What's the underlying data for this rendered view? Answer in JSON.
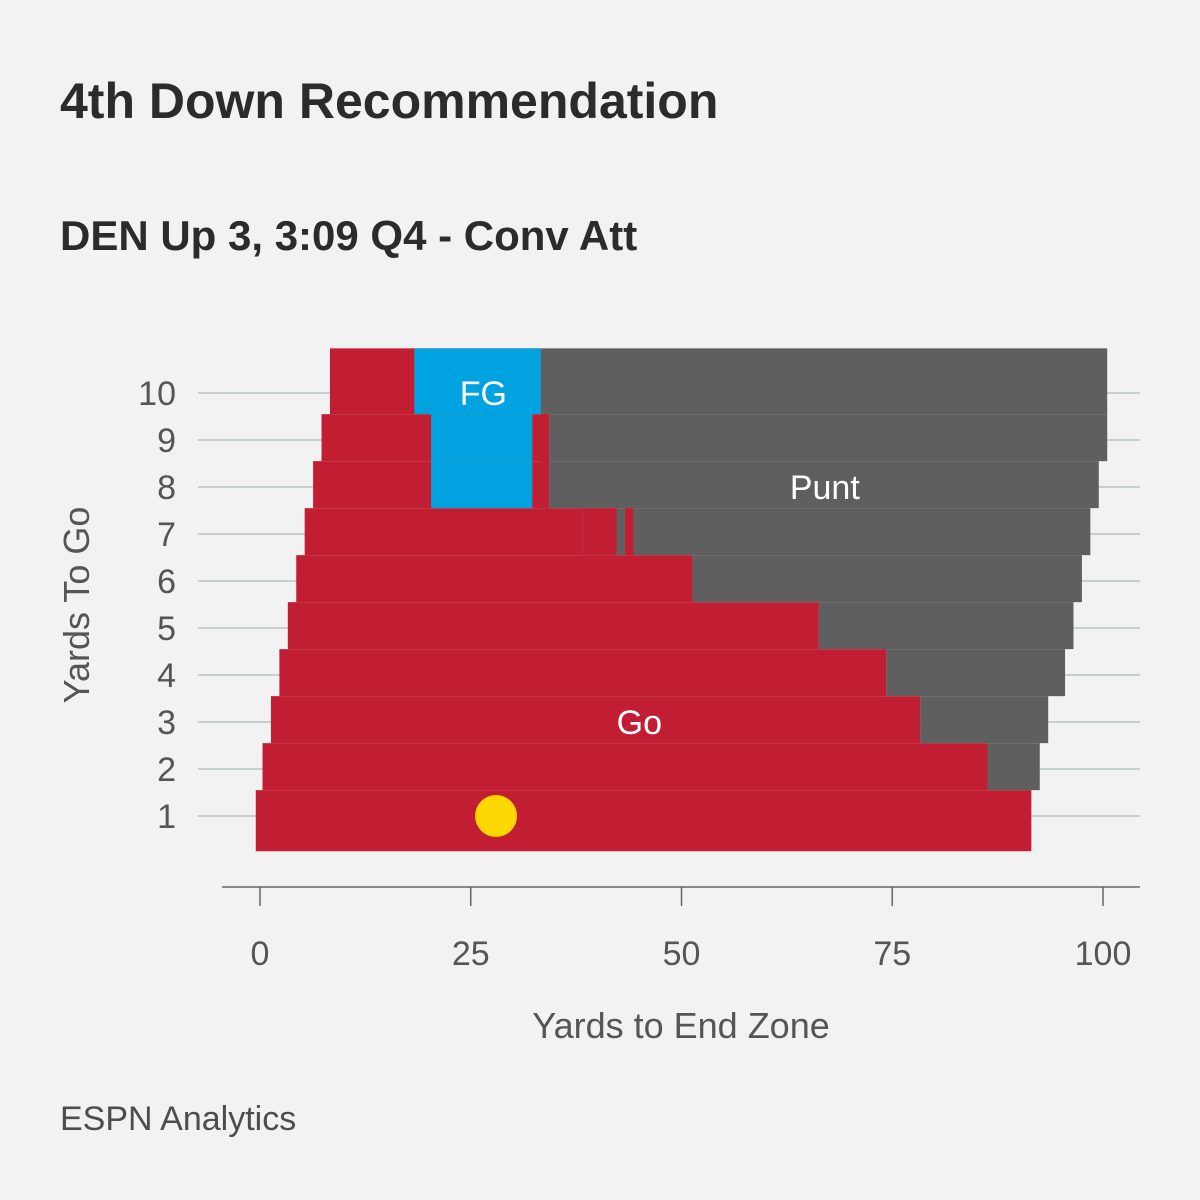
{
  "header": {
    "title": "4th Down Recommendation",
    "subtitle": "DEN Up 3, 3:09 Q4 - Conv Att"
  },
  "footer": {
    "credit": "ESPN Analytics"
  },
  "colors": {
    "go": "#c21e33",
    "fg": "#00a3e0",
    "punt": "#5f5f5f",
    "marker": "#ffd700",
    "gridline": "#9aa9aa",
    "axis": "#666666",
    "text": "#555555",
    "region_label": "#ffffff"
  },
  "chart_data": {
    "type": "heatmap",
    "xlabel": "Yards to End Zone",
    "ylabel": "Yards To Go",
    "xlim": [
      -0.5,
      104
    ],
    "ylim": [
      0.25,
      10.95
    ],
    "x_ticks": [
      0,
      25,
      50,
      75,
      100
    ],
    "y_ticks": [
      1,
      2,
      3,
      4,
      5,
      6,
      7,
      8,
      9,
      10
    ],
    "rows": [
      {
        "ytg": 1,
        "go": [
          -0.5,
          91.5
        ],
        "punt": null,
        "fg": null
      },
      {
        "ytg": 2,
        "go": [
          0.3,
          86.3
        ],
        "punt": [
          86.3,
          92.5
        ],
        "fg": null
      },
      {
        "ytg": 3,
        "go": [
          1.3,
          78.3
        ],
        "punt": [
          78.3,
          93.5
        ],
        "fg": null
      },
      {
        "ytg": 4,
        "go": [
          2.3,
          74.3
        ],
        "punt": [
          74.3,
          95.5
        ],
        "fg": null
      },
      {
        "ytg": 5,
        "go": [
          3.3,
          66.3
        ],
        "punt": [
          66.3,
          96.5
        ],
        "fg": null
      },
      {
        "ytg": 6,
        "go": [
          4.3,
          51.3
        ],
        "punt": [
          51.3,
          97.5
        ],
        "fg": null
      },
      {
        "ytg": 7,
        "go": [
          5.3,
          38.3
        ],
        "punt": [
          38.3,
          98.5
        ],
        "fg": null
      },
      {
        "ytg": 8,
        "go": [
          6.3,
          34.3
        ],
        "punt": [
          34.3,
          99.5
        ],
        "fg": [
          20.3,
          32.3
        ]
      },
      {
        "ytg": 9,
        "go": [
          7.3,
          34.3
        ],
        "punt": [
          34.3,
          100.5
        ],
        "fg": [
          20.3,
          32.3
        ]
      },
      {
        "ytg": 10,
        "go": [
          8.3,
          33.3
        ],
        "punt": [
          33.3,
          100.5
        ],
        "fg": [
          18.3,
          33.3
        ]
      }
    ],
    "patches": [
      {
        "decision": "go",
        "x": [
          38.3,
          42.3
        ],
        "y": [
          6.55,
          7.55
        ]
      },
      {
        "decision": "go",
        "x": [
          43.3,
          44.3
        ],
        "y": [
          6.55,
          7.55
        ]
      },
      {
        "decision": "go",
        "x": [
          33.3,
          34.3
        ],
        "y": [
          7.55,
          9.55
        ]
      }
    ],
    "region_labels": [
      {
        "label": "FG",
        "x": 26.5,
        "y": 10
      },
      {
        "label": "Punt",
        "x": 67,
        "y": 8
      },
      {
        "label": "Go",
        "x": 45,
        "y": 3
      }
    ],
    "current_situation": {
      "yards_to_end_zone": 28,
      "yards_to_go": 1
    }
  }
}
